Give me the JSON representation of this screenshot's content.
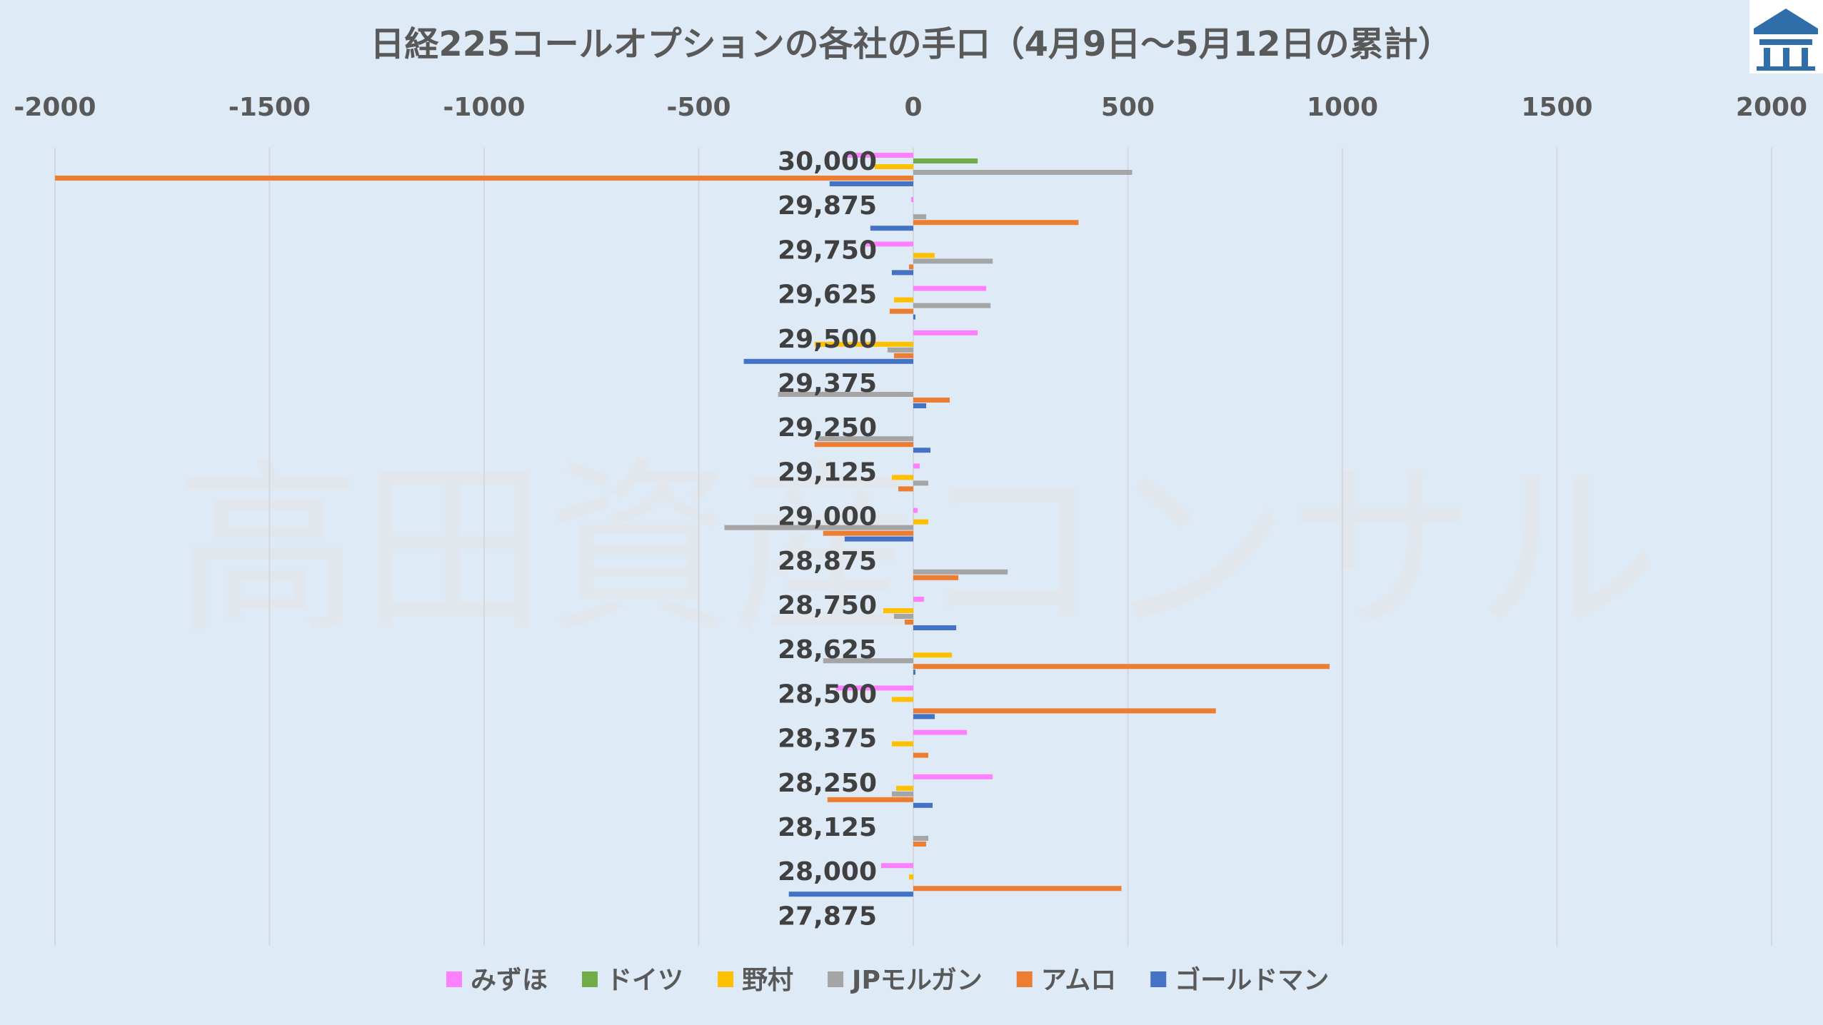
{
  "watermark": "高田資産コンサル",
  "logo": {
    "icon": "building-logo-icon",
    "color": "#2f6ea8"
  },
  "chart_data": {
    "type": "bar",
    "orientation": "horizontal",
    "title": "日経225コールオプションの各社の手口（4月9日～5月12日の累計）",
    "xlim": [
      -2000,
      2000
    ],
    "xticks": [
      -2000,
      -1500,
      -1000,
      -500,
      0,
      500,
      1000,
      1500,
      2000
    ],
    "grid": true,
    "legend_position": "bottom",
    "categories": [
      "30,000",
      "29,875",
      "29,750",
      "29,625",
      "29,500",
      "29,375",
      "29,250",
      "29,125",
      "29,000",
      "28,875",
      "28,750",
      "28,625",
      "28,500",
      "28,375",
      "28,250",
      "28,125",
      "28,000",
      "27,875"
    ],
    "series": [
      {
        "name": "みずほ",
        "color": "#ff80ff",
        "values": [
          -160,
          -5,
          -110,
          170,
          150,
          0,
          0,
          15,
          10,
          0,
          25,
          0,
          -180,
          125,
          185,
          0,
          -75,
          0
        ]
      },
      {
        "name": "ドイツ",
        "color": "#70ad47",
        "values": [
          150,
          0,
          0,
          0,
          0,
          0,
          0,
          0,
          0,
          0,
          0,
          0,
          0,
          0,
          0,
          0,
          0,
          0
        ]
      },
      {
        "name": "野村",
        "color": "#ffc000",
        "values": [
          -90,
          0,
          50,
          -45,
          -230,
          0,
          0,
          -50,
          35,
          0,
          -70,
          90,
          -50,
          -50,
          -40,
          0,
          -10,
          0
        ]
      },
      {
        "name": "JPモルガン",
        "color": "#a5a5a5",
        "values": [
          510,
          30,
          185,
          180,
          -60,
          -315,
          -225,
          35,
          -440,
          220,
          -45,
          -210,
          0,
          0,
          -50,
          35,
          0,
          0
        ]
      },
      {
        "name": "アムロ",
        "color": "#ed7d31",
        "values": [
          -2000,
          385,
          -10,
          -55,
          -45,
          85,
          -230,
          -35,
          -210,
          105,
          -20,
          970,
          705,
          35,
          -200,
          30,
          485,
          0
        ]
      },
      {
        "name": "ゴールドマン",
        "color": "#4472c4",
        "values": [
          -195,
          -100,
          -50,
          5,
          -395,
          30,
          40,
          0,
          -160,
          0,
          100,
          5,
          50,
          0,
          45,
          0,
          -290,
          0
        ]
      }
    ]
  }
}
